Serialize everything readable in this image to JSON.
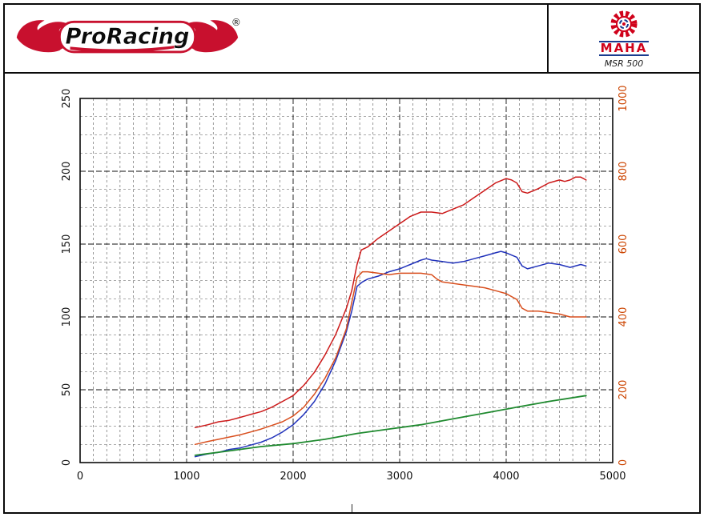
{
  "page": {
    "background": "#ffffff",
    "border_color": "#0a0a0a",
    "bottom_center_mark": "|"
  },
  "header": {
    "brand": {
      "name": "ProRacing",
      "registered_mark": "®",
      "flame_color": "#c8102e",
      "text_color": "#0b0b0b"
    },
    "device": {
      "name": "MAHA",
      "model": "MSR 500",
      "logo_red": "#d0021b",
      "logo_blue": "#1a3c8f"
    }
  },
  "chart_data": {
    "type": "line",
    "title": "",
    "xlabel": "",
    "ylabel_left": "",
    "ylabel_right": "",
    "xlim": [
      0,
      5000
    ],
    "ylim_left": [
      0,
      250
    ],
    "ylim_right": [
      0,
      1000
    ],
    "x_ticks": [
      0,
      1000,
      2000,
      3000,
      4000,
      5000
    ],
    "y_ticks_left": [
      0,
      50,
      100,
      150,
      200,
      250
    ],
    "y_ticks_right": [
      0,
      200,
      400,
      600,
      800,
      1000
    ],
    "axis_color_left": "#111111",
    "axis_color_right": "#cc4400",
    "grid": {
      "style": "dashed",
      "minor_x_step": 125,
      "major_x_step": 1000,
      "minor_y_step": 12.5,
      "major_y_step": 50
    },
    "legend": "none",
    "series": [
      {
        "name": "red-upper-curve",
        "color": "#cc1a1a",
        "axis": "left",
        "points": [
          [
            1080,
            24
          ],
          [
            1200,
            26
          ],
          [
            1300,
            28
          ],
          [
            1400,
            29
          ],
          [
            1500,
            31
          ],
          [
            1550,
            32
          ],
          [
            1600,
            33
          ],
          [
            1700,
            35
          ],
          [
            1800,
            38
          ],
          [
            1900,
            42
          ],
          [
            2000,
            46
          ],
          [
            2100,
            53
          ],
          [
            2200,
            62
          ],
          [
            2300,
            74
          ],
          [
            2400,
            88
          ],
          [
            2500,
            106
          ],
          [
            2550,
            118
          ],
          [
            2600,
            136
          ],
          [
            2640,
            146
          ],
          [
            2700,
            148
          ],
          [
            2800,
            154
          ],
          [
            2900,
            159
          ],
          [
            3000,
            164
          ],
          [
            3100,
            169
          ],
          [
            3200,
            172
          ],
          [
            3300,
            172
          ],
          [
            3400,
            171
          ],
          [
            3500,
            174
          ],
          [
            3600,
            177
          ],
          [
            3700,
            182
          ],
          [
            3800,
            187
          ],
          [
            3900,
            192
          ],
          [
            4000,
            195
          ],
          [
            4050,
            194
          ],
          [
            4100,
            192
          ],
          [
            4150,
            186
          ],
          [
            4200,
            185
          ],
          [
            4300,
            188
          ],
          [
            4400,
            192
          ],
          [
            4500,
            194
          ],
          [
            4550,
            193
          ],
          [
            4600,
            194
          ],
          [
            4650,
            196
          ],
          [
            4700,
            196
          ],
          [
            4750,
            194
          ]
        ]
      },
      {
        "name": "blue-curve",
        "color": "#2233bb",
        "axis": "left",
        "points": [
          [
            1080,
            4
          ],
          [
            1200,
            6
          ],
          [
            1300,
            7
          ],
          [
            1400,
            9
          ],
          [
            1500,
            10
          ],
          [
            1600,
            12
          ],
          [
            1700,
            14
          ],
          [
            1800,
            17
          ],
          [
            1900,
            21
          ],
          [
            2000,
            26
          ],
          [
            2100,
            33
          ],
          [
            2200,
            42
          ],
          [
            2300,
            54
          ],
          [
            2400,
            70
          ],
          [
            2500,
            90
          ],
          [
            2550,
            104
          ],
          [
            2600,
            121
          ],
          [
            2650,
            124
          ],
          [
            2700,
            126
          ],
          [
            2800,
            128
          ],
          [
            2900,
            131
          ],
          [
            3000,
            133
          ],
          [
            3100,
            136
          ],
          [
            3200,
            139
          ],
          [
            3250,
            140
          ],
          [
            3300,
            139
          ],
          [
            3400,
            138
          ],
          [
            3500,
            137
          ],
          [
            3600,
            138
          ],
          [
            3700,
            140
          ],
          [
            3800,
            142
          ],
          [
            3900,
            144
          ],
          [
            3950,
            145
          ],
          [
            4000,
            144
          ],
          [
            4100,
            141
          ],
          [
            4150,
            135
          ],
          [
            4200,
            133
          ],
          [
            4300,
            135
          ],
          [
            4400,
            137
          ],
          [
            4500,
            136
          ],
          [
            4600,
            134
          ],
          [
            4700,
            136
          ],
          [
            4750,
            135
          ]
        ]
      },
      {
        "name": "orange-torque-curve",
        "color": "#d94f1e",
        "axis": "right",
        "points": [
          [
            1080,
            50
          ],
          [
            1200,
            58
          ],
          [
            1300,
            64
          ],
          [
            1400,
            70
          ],
          [
            1500,
            76
          ],
          [
            1600,
            84
          ],
          [
            1700,
            92
          ],
          [
            1800,
            102
          ],
          [
            1900,
            112
          ],
          [
            2000,
            128
          ],
          [
            2100,
            152
          ],
          [
            2200,
            188
          ],
          [
            2300,
            232
          ],
          [
            2400,
            288
          ],
          [
            2500,
            368
          ],
          [
            2550,
            440
          ],
          [
            2600,
            508
          ],
          [
            2650,
            524
          ],
          [
            2700,
            524
          ],
          [
            2800,
            520
          ],
          [
            2900,
            516
          ],
          [
            3000,
            520
          ],
          [
            3100,
            520
          ],
          [
            3200,
            520
          ],
          [
            3300,
            516
          ],
          [
            3350,
            504
          ],
          [
            3400,
            496
          ],
          [
            3500,
            492
          ],
          [
            3600,
            488
          ],
          [
            3700,
            484
          ],
          [
            3800,
            480
          ],
          [
            3900,
            472
          ],
          [
            4000,
            464
          ],
          [
            4100,
            448
          ],
          [
            4150,
            424
          ],
          [
            4200,
            416
          ],
          [
            4300,
            416
          ],
          [
            4400,
            412
          ],
          [
            4500,
            408
          ],
          [
            4600,
            400
          ],
          [
            4700,
            400
          ],
          [
            4750,
            400
          ]
        ]
      },
      {
        "name": "green-curve",
        "color": "#1f8a2f",
        "axis": "left",
        "points": [
          [
            1080,
            5
          ],
          [
            1400,
            8
          ],
          [
            1700,
            11
          ],
          [
            2000,
            13
          ],
          [
            2300,
            16
          ],
          [
            2600,
            20
          ],
          [
            2900,
            23
          ],
          [
            3200,
            26
          ],
          [
            3500,
            30
          ],
          [
            3800,
            34
          ],
          [
            4100,
            38
          ],
          [
            4400,
            42
          ],
          [
            4750,
            46
          ]
        ]
      }
    ]
  }
}
